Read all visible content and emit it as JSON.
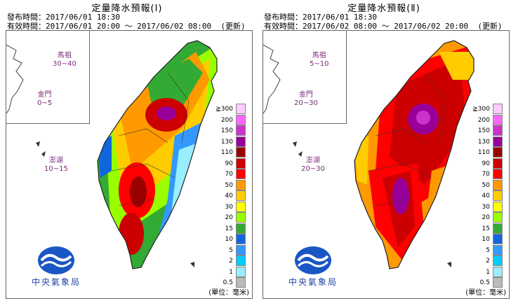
{
  "panels": [
    {
      "title": "定量降水預報(Ⅰ)",
      "issue_line": "發布時間：2017/06/01 18:30",
      "valid_line": "有效時間：2017/06/01 20:00 ～ 2017/06/02 08:00  (更新)",
      "islands": {
        "matsu": {
          "name": "馬祖",
          "range": "30~40"
        },
        "kinmen": {
          "name": "金門",
          "range": "0~5"
        },
        "penghu": {
          "name": "澎湖",
          "range": "10~15"
        }
      },
      "logo_text": "中央氣象局",
      "unit": "(單位：毫米)"
    },
    {
      "title": "定量降水預報(Ⅱ)",
      "issue_line": "發布時間：2017/06/01 18:30",
      "valid_line": "有效時間：2017/06/02 08:00 ～ 2017/06/02 20:00  (更新)",
      "islands": {
        "matsu": {
          "name": "馬祖",
          "range": "5~10"
        },
        "kinmen": {
          "name": "金門",
          "range": "20~30"
        },
        "penghu": {
          "name": "澎湖",
          "range": "20~30"
        }
      },
      "logo_text": "中央氣象局",
      "unit": "(單位：毫米)"
    }
  ],
  "legend": [
    {
      "label": "≧300",
      "color": "#ffccff"
    },
    {
      "label": "200",
      "color": "#ff66ff"
    },
    {
      "label": "150",
      "color": "#cc33cc"
    },
    {
      "label": "130",
      "color": "#990099"
    },
    {
      "label": "110",
      "color": "#990000"
    },
    {
      "label": "90",
      "color": "#cc0000"
    },
    {
      "label": "70",
      "color": "#ff0000"
    },
    {
      "label": "50",
      "color": "#ff9900"
    },
    {
      "label": "40",
      "color": "#ffcc00"
    },
    {
      "label": "30",
      "color": "#ffff00"
    },
    {
      "label": "20",
      "color": "#99ff00"
    },
    {
      "label": "15",
      "color": "#33aa33"
    },
    {
      "label": "10",
      "color": "#1166dd"
    },
    {
      "label": "5",
      "color": "#3399ff"
    },
    {
      "label": "2",
      "color": "#00ccff"
    },
    {
      "label": "1",
      "color": "#99eeff"
    },
    {
      "label": "0.5",
      "color": "#bbbbbb"
    }
  ]
}
